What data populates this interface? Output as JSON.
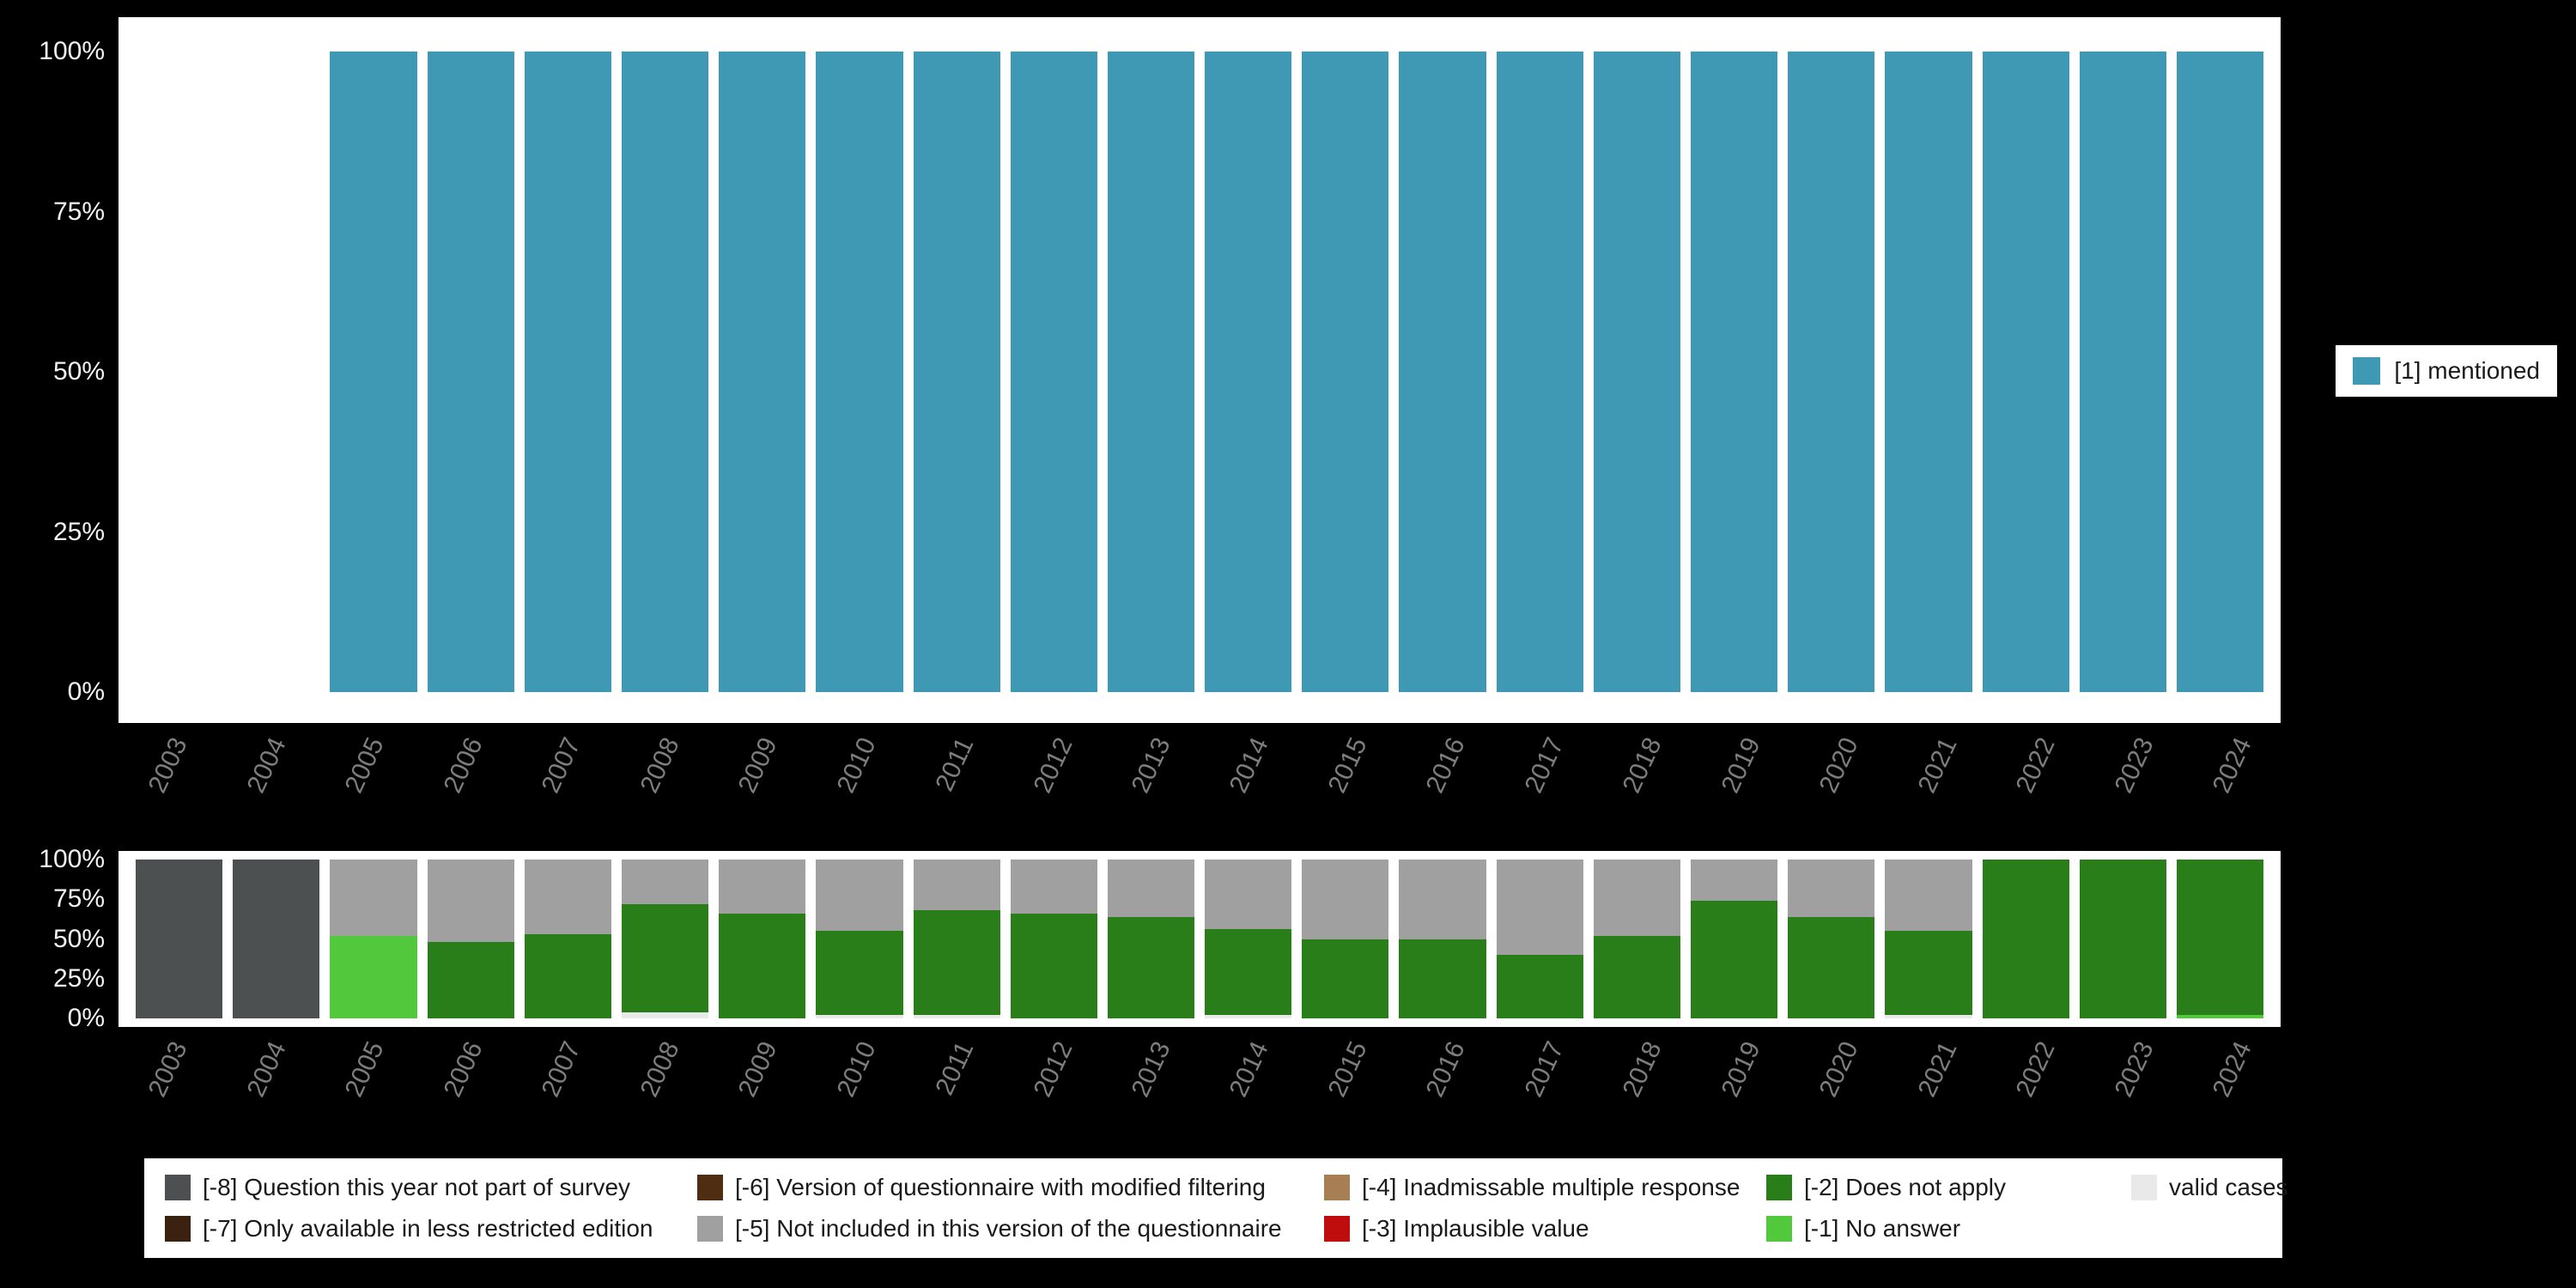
{
  "background": "#000000",
  "panel_background": "#ffffff",
  "axes": {
    "y_tick_labels": [
      "100%",
      "75%",
      "50%",
      "25%",
      "0%"
    ],
    "x_tick_labels": [
      "2003",
      "2004",
      "2005",
      "2006",
      "2007",
      "2008",
      "2009",
      "2010",
      "2011",
      "2012",
      "2013",
      "2014",
      "2015",
      "2016",
      "2017",
      "2018",
      "2019",
      "2020",
      "2021",
      "2022",
      "2023",
      "2024"
    ]
  },
  "top_legend": {
    "items": [
      {
        "label": "[1] mentioned",
        "color": "#3f99b5"
      }
    ]
  },
  "bottom_legend": {
    "items": [
      {
        "label": "[-8] Question this year not part of survey",
        "color": "#4d5050"
      },
      {
        "label": "[-6] Version of questionnaire with modified filtering",
        "color": "#4f2d12"
      },
      {
        "label": "[-4] Inadmissable multiple response",
        "color": "#a87e55"
      },
      {
        "label": "[-2] Does not apply",
        "color": "#2a7e19"
      },
      {
        "label": "valid cases",
        "color": "#e9e9e9"
      },
      {
        "label": "[-7] Only available in less restricted edition",
        "color": "#3b2210"
      },
      {
        "label": "[-5] Not included in this version of the questionnaire",
        "color": "#a0a0a0"
      },
      {
        "label": "[-3] Implausible value",
        "color": "#bf0d0d"
      },
      {
        "label": "[-1] No answer",
        "color": "#52c93d"
      }
    ]
  },
  "chart_data": [
    {
      "id": "mentioned-by-year",
      "type": "bar",
      "stacked": true,
      "title": "",
      "xlabel": "",
      "ylabel": "",
      "ylim": [
        0,
        100
      ],
      "y_tick_labels": [
        "100%",
        "75%",
        "50%",
        "25%",
        "0%"
      ],
      "legend_position": "right",
      "categories": [
        "2003",
        "2004",
        "2005",
        "2006",
        "2007",
        "2008",
        "2009",
        "2010",
        "2011",
        "2012",
        "2013",
        "2014",
        "2015",
        "2016",
        "2017",
        "2018",
        "2019",
        "2020",
        "2021",
        "2022",
        "2023",
        "2024"
      ],
      "series": [
        {
          "name": "[1] mentioned",
          "color": "#3f99b5",
          "values": [
            0,
            0,
            100,
            100,
            100,
            100,
            100,
            100,
            100,
            100,
            100,
            100,
            100,
            100,
            100,
            100,
            100,
            100,
            100,
            100,
            100,
            100
          ]
        }
      ]
    },
    {
      "id": "missing-values-by-year",
      "type": "bar",
      "stacked": true,
      "title": "",
      "xlabel": "",
      "ylabel": "",
      "ylim": [
        0,
        100
      ],
      "y_tick_labels": [
        "100%",
        "75%",
        "50%",
        "25%",
        "0%"
      ],
      "legend_position": "bottom",
      "series_order": "bottom-to-top",
      "categories": [
        "2003",
        "2004",
        "2005",
        "2006",
        "2007",
        "2008",
        "2009",
        "2010",
        "2011",
        "2012",
        "2013",
        "2014",
        "2015",
        "2016",
        "2017",
        "2018",
        "2019",
        "2020",
        "2021",
        "2022",
        "2023",
        "2024"
      ],
      "series": [
        {
          "name": "valid cases",
          "color": "#e9e9e9",
          "values": [
            0,
            0,
            0,
            0,
            0,
            4,
            0,
            2,
            2,
            0,
            0,
            2,
            0,
            0,
            0,
            0,
            0,
            0,
            2,
            0,
            0,
            0
          ]
        },
        {
          "name": "[-1] No answer",
          "color": "#52c93d",
          "values": [
            0,
            0,
            52,
            0,
            0,
            0,
            0,
            0,
            0,
            0,
            0,
            0,
            0,
            0,
            0,
            0,
            0,
            0,
            0,
            0,
            0,
            2
          ]
        },
        {
          "name": "[-2] Does not apply",
          "color": "#2a7e19",
          "values": [
            0,
            0,
            0,
            48,
            53,
            68,
            66,
            53,
            66,
            66,
            64,
            54,
            50,
            50,
            40,
            52,
            74,
            64,
            53,
            100,
            100,
            98
          ]
        },
        {
          "name": "[-5] Not included in this version of the questionnaire",
          "color": "#a0a0a0",
          "values": [
            0,
            0,
            48,
            52,
            47,
            28,
            34,
            45,
            32,
            34,
            36,
            44,
            50,
            50,
            60,
            48,
            26,
            36,
            45,
            0,
            0,
            0
          ]
        },
        {
          "name": "[-8] Question this year not part of survey",
          "color": "#4d5050",
          "values": [
            100,
            100,
            0,
            0,
            0,
            0,
            0,
            0,
            0,
            0,
            0,
            0,
            0,
            0,
            0,
            0,
            0,
            0,
            0,
            0,
            0,
            0
          ]
        }
      ]
    }
  ]
}
